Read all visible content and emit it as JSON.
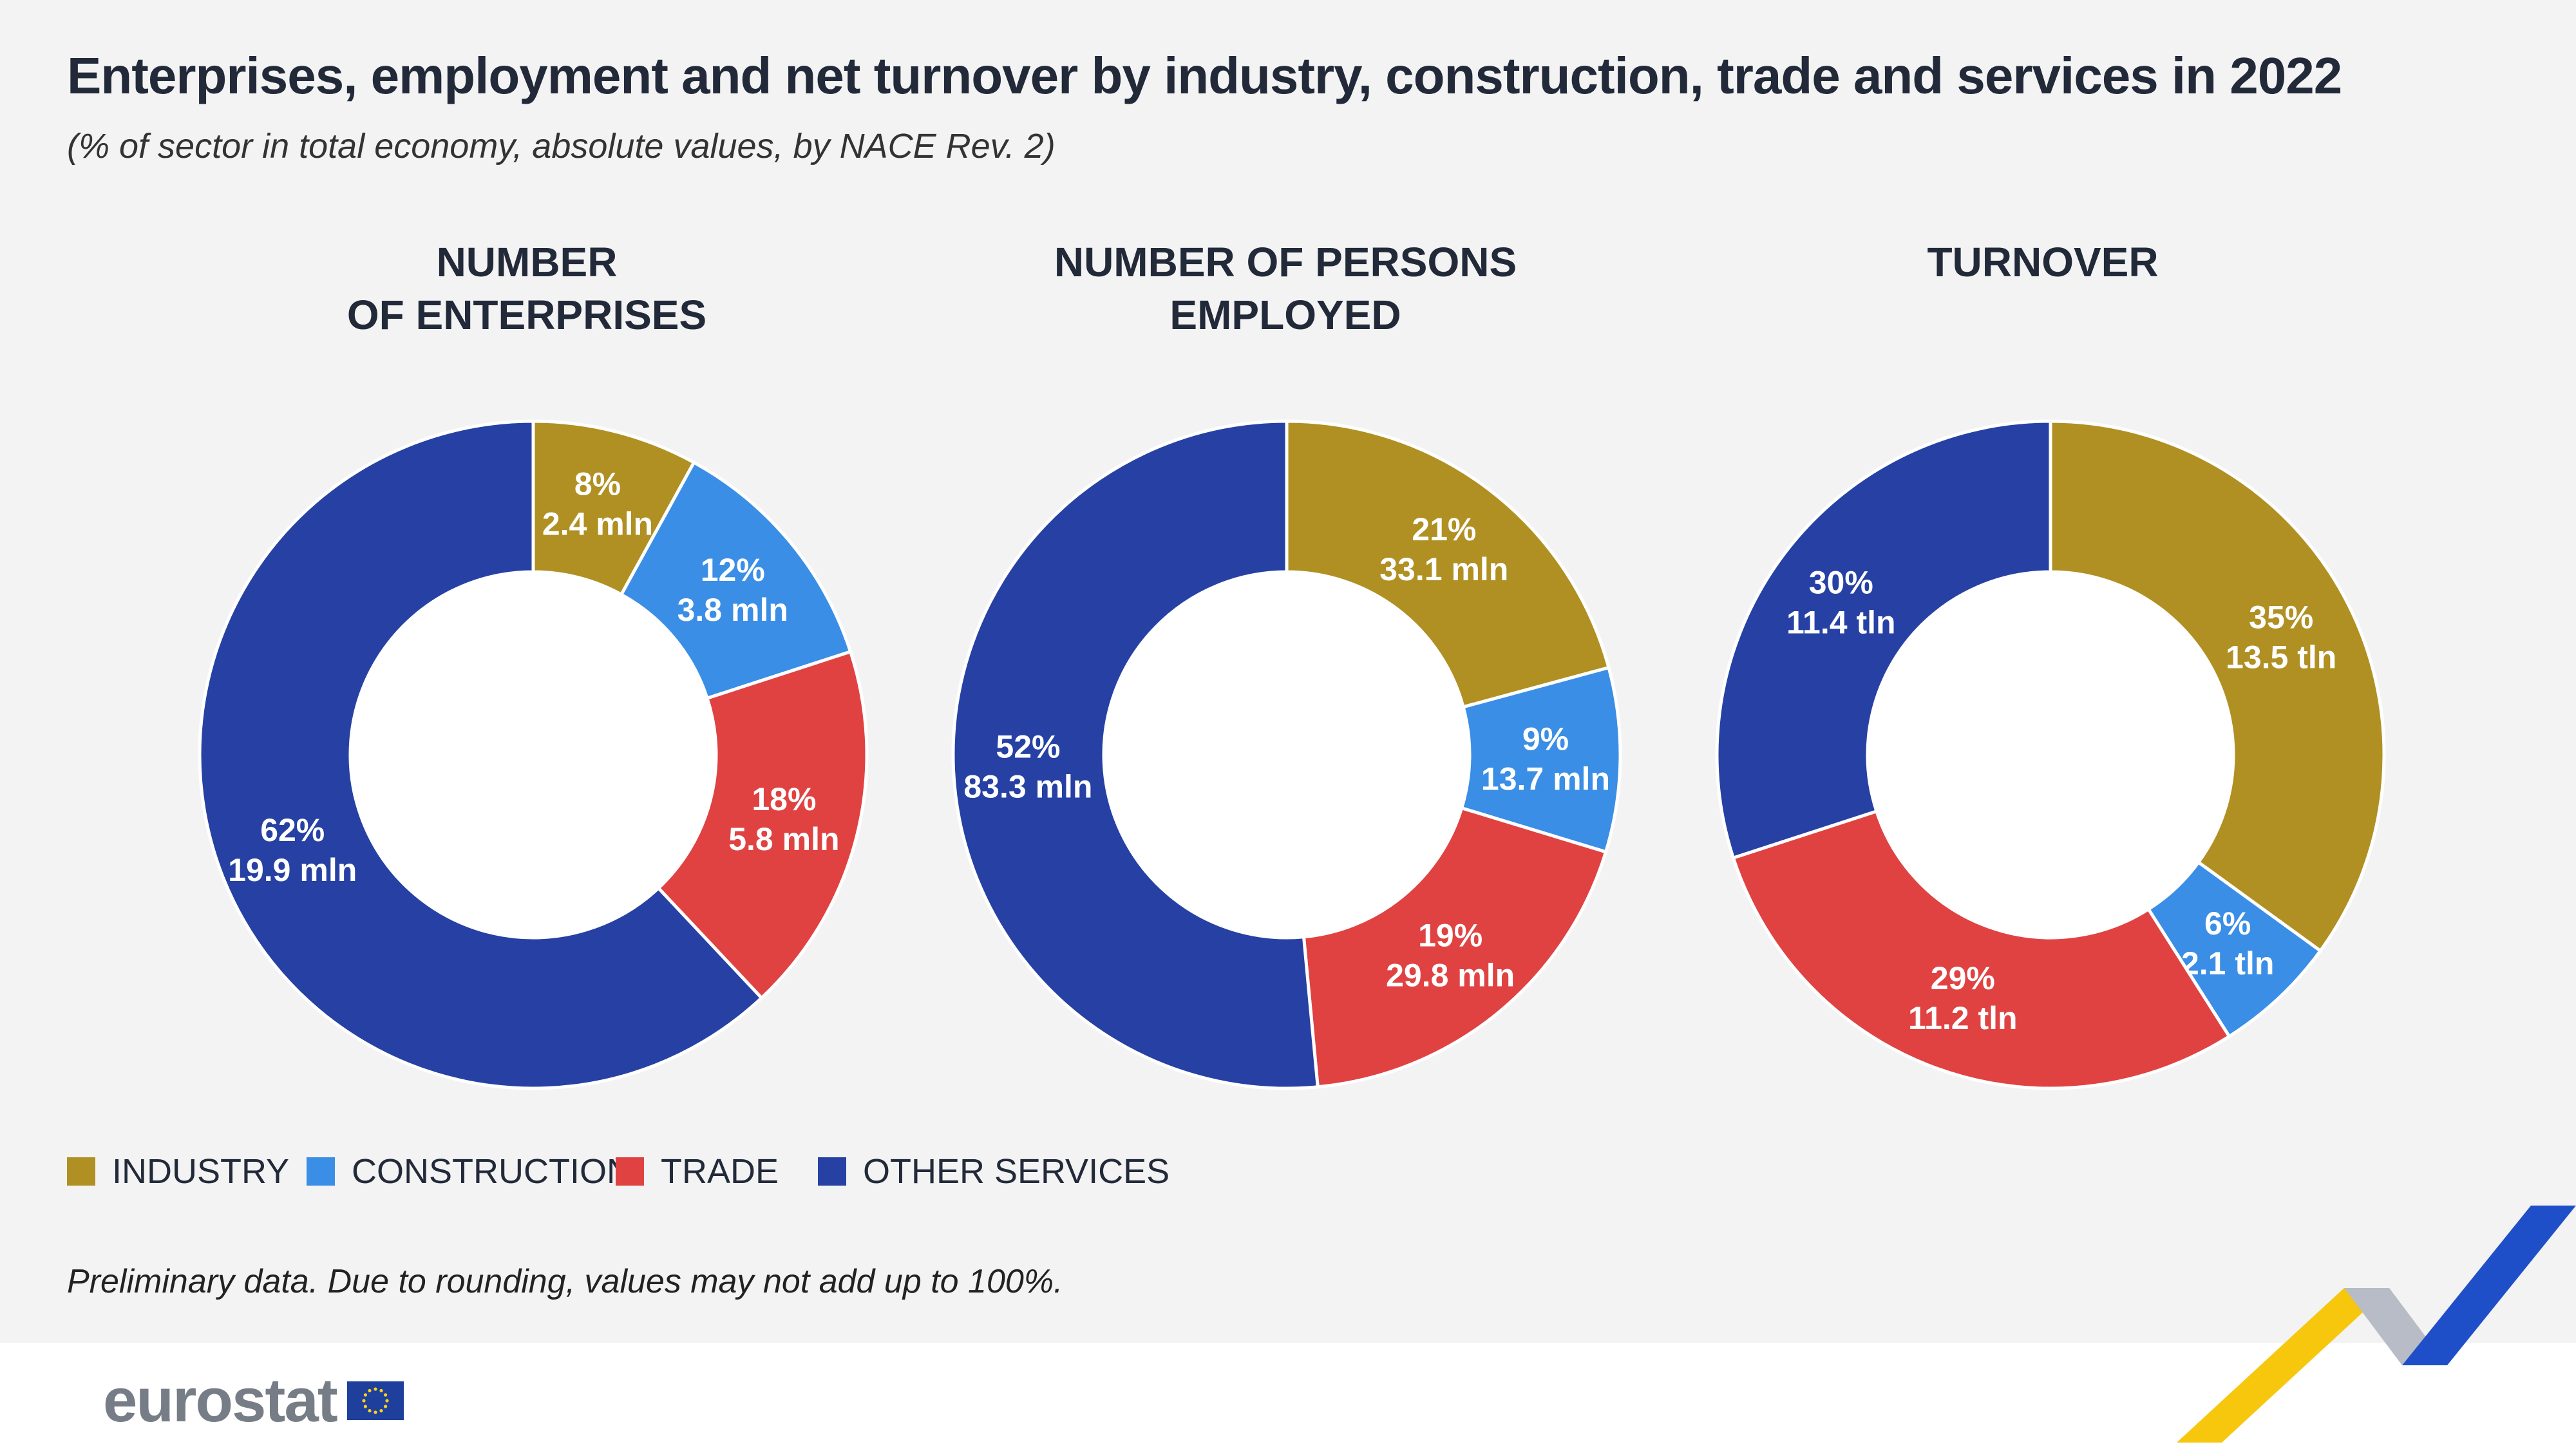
{
  "title": "Enterprises, employment and net turnover by industry, construction, trade and services in 2022",
  "subtitle": "(% of sector in total economy, absolute values, by NACE Rev. 2)",
  "note": "Preliminary data. Due to rounding, values may not add up to 100%.",
  "logo_text": "eurostat",
  "colors": {
    "INDUSTRY": "#b09022",
    "CONSTRUCTION": "#3a8ee6",
    "TRADE": "#e04242",
    "OTHER SERVICES": "#2641a3"
  },
  "legend": [
    "INDUSTRY",
    "CONSTRUCTION",
    "TRADE",
    "OTHER SERVICES"
  ],
  "chart_data": [
    {
      "type": "pie",
      "subtype": "donut",
      "title_lines": [
        "NUMBER",
        "OF ENTERPRISES"
      ],
      "categories": [
        "INDUSTRY",
        "CONSTRUCTION",
        "TRADE",
        "OTHER SERVICES"
      ],
      "values": [
        8,
        12,
        18,
        62
      ],
      "absolute": [
        "2.4 mln",
        "3.8 mln",
        "5.8 mln",
        "19.9 mln"
      ]
    },
    {
      "type": "pie",
      "subtype": "donut",
      "title_lines": [
        "NUMBER OF PERSONS",
        "EMPLOYED"
      ],
      "categories": [
        "INDUSTRY",
        "CONSTRUCTION",
        "TRADE",
        "OTHER SERVICES"
      ],
      "values": [
        21,
        9,
        19,
        52
      ],
      "absolute": [
        "33.1 mln",
        "13.7 mln",
        "29.8 mln",
        "83.3 mln"
      ]
    },
    {
      "type": "pie",
      "subtype": "donut",
      "title_lines": [
        "TURNOVER"
      ],
      "categories": [
        "INDUSTRY",
        "CONSTRUCTION",
        "TRADE",
        "OTHER SERVICES"
      ],
      "values": [
        35,
        6,
        29,
        30
      ],
      "absolute": [
        "13.5 tln",
        "2.1 tln",
        "11.2 tln",
        "11.4 tln"
      ]
    }
  ]
}
